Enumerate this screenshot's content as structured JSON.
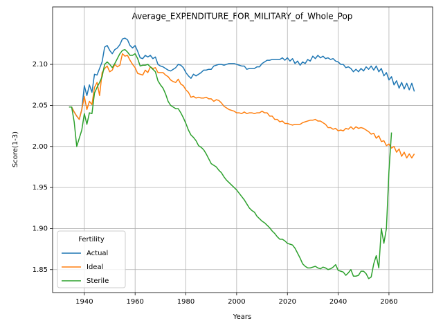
{
  "chart_data": {
    "type": "line",
    "title": "Average_EXPENDITURE_FOR_MILITARY_of_Whole_Pop",
    "x_label": "Years",
    "y_label": "Score(1-3)",
    "legend_title": "Fertility",
    "legend_position": "lower left",
    "grid": true,
    "xlim": [
      1927.5,
      2077.2
    ],
    "ylim": [
      1.822,
      2.17
    ],
    "xticks": [
      1940,
      1960,
      1980,
      2000,
      2020,
      2040,
      2060
    ],
    "yticks": [
      1.85,
      {
        "value": 1.9,
        "label": "1.90"
      },
      1.95,
      {
        "value": 2.0,
        "label": "2.00"
      },
      2.05,
      {
        "value": 2.1,
        "label": "2.10"
      }
    ],
    "x": [
      1934,
      1935,
      1936,
      1937,
      1938,
      1939,
      1940,
      1941,
      1942,
      1943,
      1944,
      1945,
      1946,
      1947,
      1948,
      1949,
      1950,
      1951,
      1952,
      1953,
      1954,
      1955,
      1956,
      1957,
      1958,
      1959,
      1960,
      1961,
      1962,
      1963,
      1964,
      1965,
      1966,
      1967,
      1968,
      1969,
      1970,
      1971,
      1972,
      1973,
      1974,
      1975,
      1976,
      1977,
      1978,
      1979,
      1980,
      1981,
      1982,
      1983,
      1984,
      1985,
      1986,
      1987,
      1988,
      1989,
      1990,
      1991,
      1992,
      1993,
      1994,
      1995,
      1996,
      1997,
      1998,
      1999,
      2000,
      2001,
      2002,
      2003,
      2004,
      2005,
      2006,
      2007,
      2008,
      2009,
      2010,
      2011,
      2012,
      2013,
      2014,
      2015,
      2016,
      2017,
      2018,
      2019,
      2020,
      2021,
      2022,
      2023,
      2024,
      2025,
      2026,
      2027,
      2028,
      2029,
      2030,
      2031,
      2032,
      2033,
      2034,
      2035,
      2036,
      2037,
      2038,
      2039,
      2040,
      2041,
      2042,
      2043,
      2044,
      2045,
      2046,
      2047,
      2048,
      2049,
      2050,
      2051,
      2052,
      2053,
      2054,
      2055,
      2056,
      2057,
      2058,
      2059,
      2060,
      2061,
      2062,
      2063,
      2064,
      2065,
      2066,
      2067,
      2068,
      2069,
      2070
    ],
    "series": [
      {
        "name": "Actual",
        "color": "#1f77b4",
        "values": [
          2.048,
          2.048,
          2.042,
          2.037,
          2.033,
          2.045,
          2.074,
          2.062,
          2.075,
          2.066,
          2.088,
          2.087,
          2.095,
          2.103,
          2.121,
          2.123,
          2.117,
          2.113,
          2.118,
          2.12,
          2.124,
          2.131,
          2.132,
          2.13,
          2.123,
          2.12,
          2.123,
          2.116,
          2.108,
          2.107,
          2.111,
          2.109,
          2.111,
          2.107,
          2.109,
          2.1,
          2.098,
          2.097,
          2.095,
          2.093,
          2.092,
          2.094,
          2.096,
          2.1,
          2.099,
          2.096,
          2.09,
          2.086,
          2.083,
          2.088,
          2.086,
          2.088,
          2.09,
          2.093,
          2.093,
          2.094,
          2.094,
          2.098,
          2.099,
          2.1,
          2.1,
          2.099,
          2.1,
          2.101,
          2.101,
          2.101,
          2.1,
          2.099,
          2.098,
          2.098,
          2.094,
          2.095,
          2.095,
          2.095,
          2.097,
          2.097,
          2.101,
          2.103,
          2.105,
          2.105,
          2.106,
          2.106,
          2.106,
          2.106,
          2.108,
          2.105,
          2.108,
          2.104,
          2.107,
          2.101,
          2.104,
          2.099,
          2.103,
          2.101,
          2.106,
          2.104,
          2.11,
          2.107,
          2.111,
          2.108,
          2.11,
          2.107,
          2.108,
          2.106,
          2.107,
          2.104,
          2.103,
          2.1,
          2.1,
          2.096,
          2.097,
          2.095,
          2.091,
          2.094,
          2.091,
          2.095,
          2.092,
          2.097,
          2.094,
          2.098,
          2.093,
          2.098,
          2.091,
          2.095,
          2.086,
          2.09,
          2.081,
          2.085,
          2.075,
          2.08,
          2.071,
          2.078,
          2.07,
          2.077,
          2.069,
          2.077,
          2.067
        ]
      },
      {
        "name": "Ideal",
        "color": "#ff7f0e",
        "values": [
          2.048,
          2.048,
          2.042,
          2.037,
          2.033,
          2.045,
          2.061,
          2.045,
          2.055,
          2.051,
          2.072,
          2.078,
          2.062,
          2.09,
          2.095,
          2.098,
          2.091,
          2.093,
          2.1,
          2.097,
          2.099,
          2.113,
          2.11,
          2.111,
          2.105,
          2.1,
          2.096,
          2.089,
          2.088,
          2.087,
          2.093,
          2.09,
          2.097,
          2.095,
          2.096,
          2.09,
          2.09,
          2.09,
          2.087,
          2.085,
          2.081,
          2.079,
          2.078,
          2.082,
          2.076,
          2.074,
          2.069,
          2.066,
          2.06,
          2.061,
          2.059,
          2.06,
          2.059,
          2.059,
          2.06,
          2.058,
          2.058,
          2.055,
          2.057,
          2.056,
          2.053,
          2.049,
          2.047,
          2.045,
          2.044,
          2.043,
          2.041,
          2.041,
          2.04,
          2.042,
          2.04,
          2.041,
          2.041,
          2.04,
          2.041,
          2.041,
          2.043,
          2.041,
          2.041,
          2.037,
          2.037,
          2.033,
          2.033,
          2.03,
          2.031,
          2.028,
          2.028,
          2.027,
          2.026,
          2.027,
          2.027,
          2.027,
          2.029,
          2.03,
          2.031,
          2.032,
          2.032,
          2.033,
          2.031,
          2.031,
          2.029,
          2.027,
          2.023,
          2.023,
          2.021,
          2.022,
          2.019,
          2.02,
          2.019,
          2.022,
          2.021,
          2.024,
          2.021,
          2.024,
          2.022,
          2.023,
          2.022,
          2.02,
          2.018,
          2.015,
          2.016,
          2.01,
          2.013,
          2.006,
          2.007,
          2.001,
          2.003,
          1.998,
          2.0,
          1.993,
          1.997,
          1.988,
          1.993,
          1.986,
          1.991,
          1.986,
          1.991
        ]
      },
      {
        "name": "Sterile",
        "color": "#2ca02c",
        "values": [
          2.048,
          2.048,
          2.03,
          2.0,
          2.01,
          2.02,
          2.04,
          2.027,
          2.041,
          2.04,
          2.065,
          2.072,
          2.078,
          2.085,
          2.1,
          2.103,
          2.1,
          2.096,
          2.101,
          2.107,
          2.113,
          2.117,
          2.118,
          2.115,
          2.111,
          2.111,
          2.113,
          2.107,
          2.098,
          2.099,
          2.099,
          2.1,
          2.097,
          2.094,
          2.091,
          2.08,
          2.075,
          2.071,
          2.064,
          2.055,
          2.05,
          2.048,
          2.046,
          2.046,
          2.041,
          2.035,
          2.028,
          2.02,
          2.014,
          2.011,
          2.007,
          2.001,
          1.999,
          1.996,
          1.991,
          1.985,
          1.979,
          1.977,
          1.975,
          1.971,
          1.968,
          1.963,
          1.959,
          1.956,
          1.953,
          1.95,
          1.947,
          1.943,
          1.939,
          1.935,
          1.93,
          1.925,
          1.922,
          1.92,
          1.915,
          1.912,
          1.909,
          1.907,
          1.904,
          1.901,
          1.897,
          1.894,
          1.89,
          1.887,
          1.887,
          1.885,
          1.882,
          1.881,
          1.88,
          1.876,
          1.87,
          1.864,
          1.857,
          1.854,
          1.852,
          1.852,
          1.853,
          1.854,
          1.852,
          1.851,
          1.853,
          1.852,
          1.85,
          1.851,
          1.853,
          1.856,
          1.849,
          1.848,
          1.847,
          1.843,
          1.846,
          1.85,
          1.842,
          1.842,
          1.843,
          1.848,
          1.848,
          1.845,
          1.839,
          1.841,
          1.857,
          1.867,
          1.852,
          1.9,
          1.882,
          1.9,
          1.97,
          2.017,
          null,
          null,
          null,
          null,
          null,
          null,
          null,
          null,
          null
        ]
      }
    ]
  }
}
